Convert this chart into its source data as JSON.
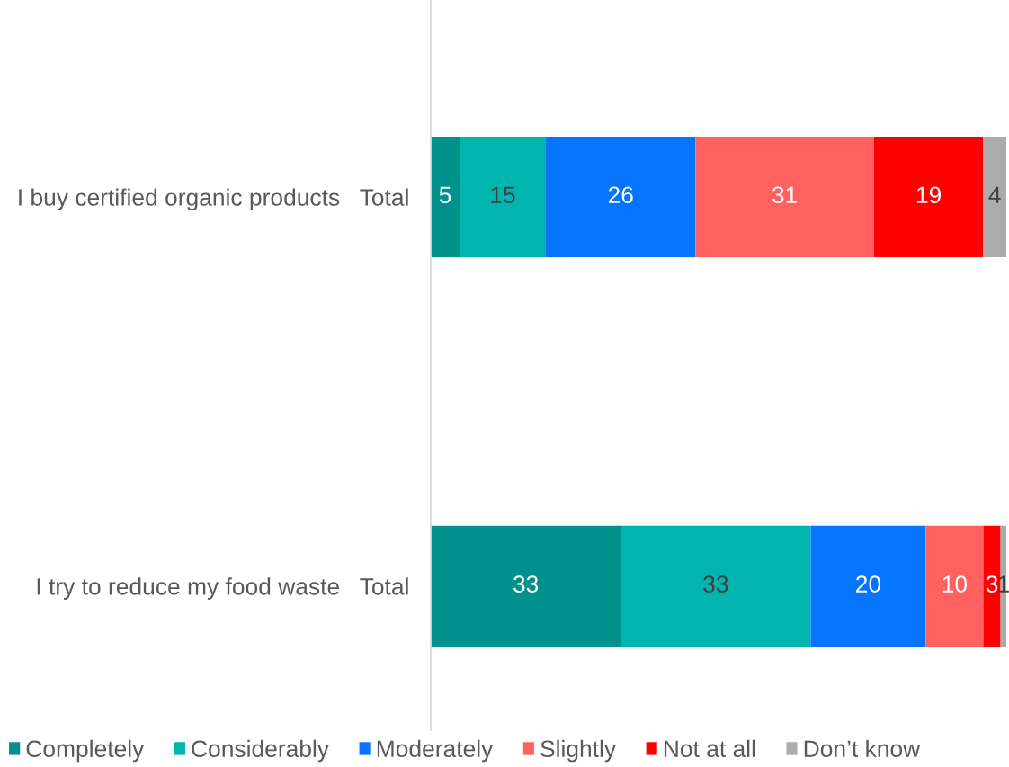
{
  "chart_data": {
    "type": "bar",
    "orientation": "horizontal",
    "stacked": true,
    "categories": [
      "I buy certified organic products   Total",
      "I try to reduce my food waste   Total"
    ],
    "series": [
      {
        "name": "Completely",
        "color": "#00918c",
        "values": [
          5,
          33
        ]
      },
      {
        "name": "Considerably",
        "color": "#00b5ad",
        "values": [
          15,
          33
        ]
      },
      {
        "name": "Moderately",
        "color": "#0674ff",
        "values": [
          26,
          20
        ]
      },
      {
        "name": "Slightly",
        "color": "#ff6161",
        "values": [
          31,
          10
        ]
      },
      {
        "name": "Not at all",
        "color": "#ff0000",
        "values": [
          19,
          3
        ]
      },
      {
        "name": "Don’t know",
        "color": "#ababab",
        "values": [
          4,
          1
        ]
      }
    ],
    "xlim": [
      0,
      100
    ],
    "data_labels": true,
    "legend": "bottom",
    "grid": false,
    "tick_labels": "y"
  }
}
